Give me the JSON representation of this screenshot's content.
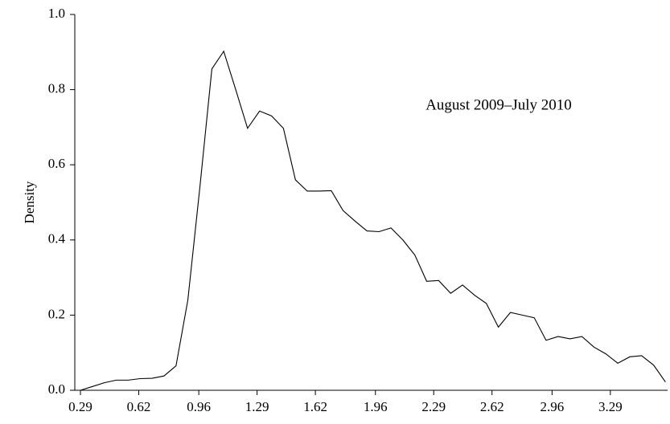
{
  "chart_data": {
    "type": "line",
    "ylabel": "Density",
    "annotation": "August 2009–July 2010",
    "x": [
      0.29,
      0.358,
      0.425,
      0.493,
      0.56,
      0.628,
      0.696,
      0.763,
      0.831,
      0.898,
      0.966,
      1.034,
      1.101,
      1.169,
      1.236,
      1.304,
      1.372,
      1.439,
      1.507,
      1.574,
      1.642,
      1.71,
      1.777,
      1.845,
      1.912,
      1.98,
      2.048,
      2.115,
      2.183,
      2.25,
      2.318,
      2.386,
      2.453,
      2.521,
      2.588,
      2.656,
      2.724,
      2.791,
      2.859,
      2.926,
      2.994,
      3.062,
      3.129,
      3.197,
      3.264,
      3.332,
      3.4,
      3.467,
      3.535,
      3.602
    ],
    "series": [
      {
        "color": "#000000",
        "values": [
          0.0,
          0.01,
          0.02,
          0.027,
          0.027,
          0.031,
          0.032,
          0.038,
          0.065,
          0.24,
          0.54,
          0.855,
          0.902,
          0.8,
          0.697,
          0.743,
          0.73,
          0.697,
          0.56,
          0.53,
          0.53,
          0.531,
          0.478,
          0.45,
          0.424,
          0.422,
          0.432,
          0.4,
          0.36,
          0.29,
          0.292,
          0.258,
          0.28,
          0.253,
          0.231,
          0.168,
          0.207,
          0.2,
          0.193,
          0.133,
          0.143,
          0.137,
          0.143,
          0.115,
          0.097,
          0.072,
          0.089,
          0.092,
          0.067,
          0.022
        ]
      }
    ],
    "xlim": [
      0.258,
      3.614
    ],
    "xticks": [
      0.29,
      0.62,
      0.96,
      1.29,
      1.62,
      1.96,
      2.29,
      2.62,
      2.96,
      3.29
    ],
    "ylim": [
      0,
      1.0
    ],
    "yticks": [
      {
        "value": 0,
        "label": "0.0"
      },
      0.2,
      0.4,
      0.6,
      0.8,
      {
        "value": 1.0,
        "label": "1.0"
      }
    ],
    "grid": false
  }
}
